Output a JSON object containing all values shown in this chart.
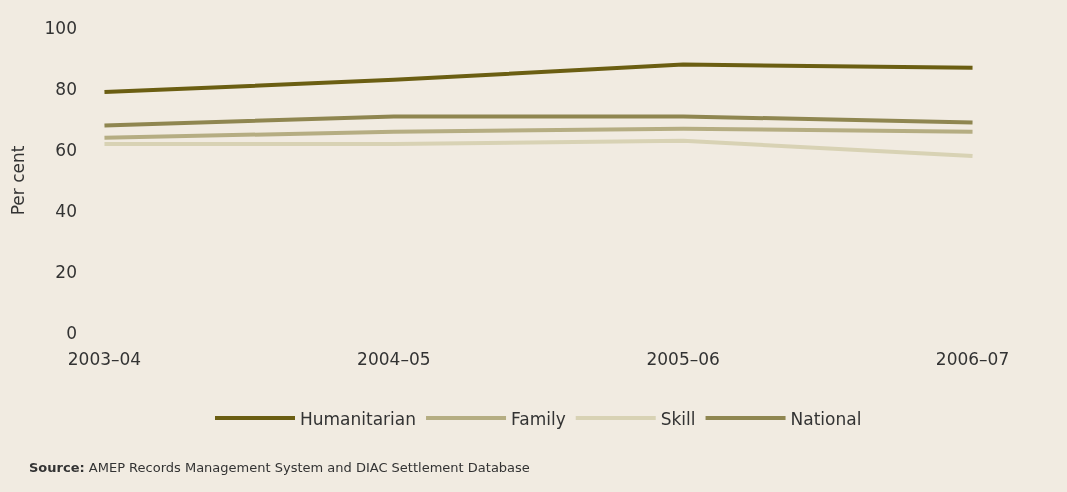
{
  "chart_data": {
    "type": "line",
    "ylabel": "Per cent",
    "categories": [
      "2003–04",
      "2004–05",
      "2005–06",
      "2006–07"
    ],
    "series": [
      {
        "name": "Humanitarian",
        "color": "#6b5e12",
        "values": [
          79,
          83,
          88,
          87
        ]
      },
      {
        "name": "Family",
        "color": "#b5ad82",
        "values": [
          64,
          66,
          67,
          66
        ]
      },
      {
        "name": "Skill",
        "color": "#d8d2b4",
        "values": [
          62,
          62,
          63,
          58
        ]
      },
      {
        "name": "National",
        "color": "#8f8650",
        "values": [
          68,
          71,
          71,
          69
        ]
      }
    ],
    "ylim": [
      0,
      100
    ],
    "yticks": [
      0,
      20,
      40,
      60,
      80,
      100
    ],
    "grid": false,
    "legend": "bottom",
    "marker": "none",
    "line_style": "solid",
    "annotations": [
      "Source: AMEP Records Management System and DIAC Settlement Database"
    ]
  }
}
